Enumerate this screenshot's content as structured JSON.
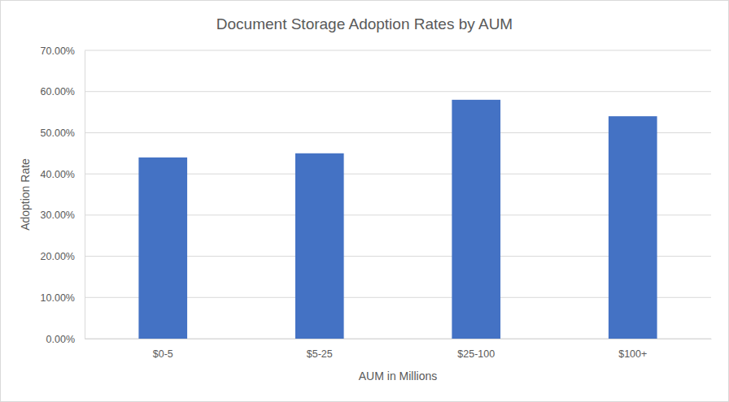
{
  "chart_data": {
    "type": "bar",
    "title": "Document Storage Adoption Rates by AUM",
    "x_label": "AUM in Millions",
    "y_label": "Adoption Rate",
    "categories": [
      "$0-5",
      "$5-25",
      "$25-100",
      "$100+"
    ],
    "values": [
      44,
      45,
      58,
      54
    ],
    "color": "#4472c4",
    "ylim": [
      0,
      70
    ],
    "yticks": [
      {
        "value": 0,
        "label": "0.00%"
      },
      {
        "value": 10,
        "label": "10.00%"
      },
      {
        "value": 20,
        "label": "20.00%"
      },
      {
        "value": 30,
        "label": "30.00%"
      },
      {
        "value": 40,
        "label": "40.00%"
      },
      {
        "value": 50,
        "label": "50.00%"
      },
      {
        "value": 60,
        "label": "60.00%"
      },
      {
        "value": 70,
        "label": "70.00%"
      }
    ],
    "grid": true
  }
}
